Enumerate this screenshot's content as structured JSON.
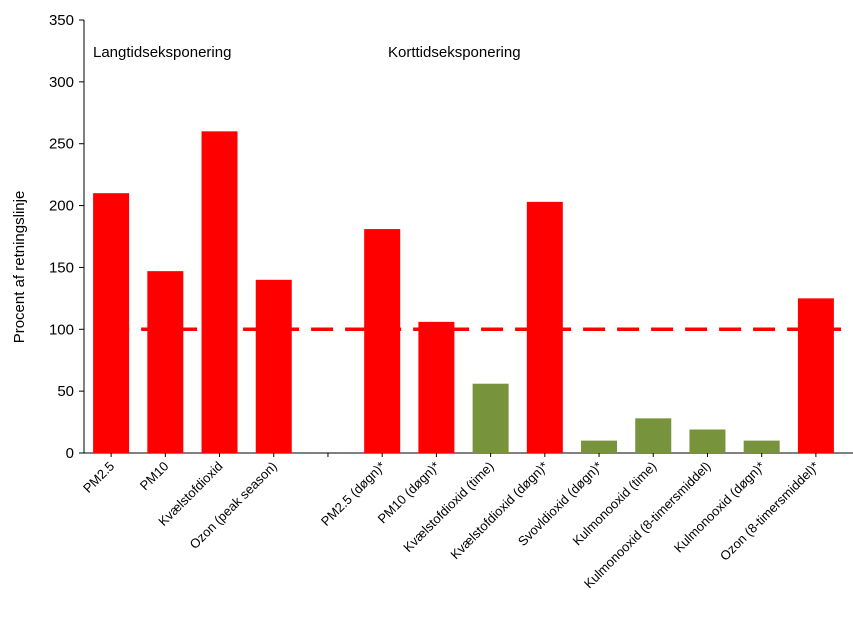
{
  "chart_data": {
    "type": "bar",
    "title": "",
    "xlabel": "",
    "ylabel": "Procent af retningslinje",
    "ylim": [
      0,
      350
    ],
    "yticks": [
      0,
      50,
      100,
      150,
      200,
      250,
      300,
      350
    ],
    "grid": false,
    "groups": [
      {
        "label": "Langtidseksponering"
      },
      {
        "label": "Korttidseksponering"
      }
    ],
    "reference_line": {
      "y": 100,
      "style": "dashed",
      "color": "#ff0000"
    },
    "colors": {
      "exceed": "#ff0000",
      "below": "#77933c"
    },
    "categories": [
      "PM2.5",
      "PM10",
      "Kvælstofdioxid",
      "Ozon (peak season)",
      "",
      "PM2.5 (døgn)*",
      "PM10 (døgn)*",
      "Kvælstofdioxid (time)",
      "Kvælstofdioxid (døgn)*",
      "Svovldioxid (døgn)*",
      "Kulmonooxid (time)",
      "Kulmonooxid (8-timersmiddel)",
      "Kulmonooxid (døgn)*",
      "Ozon (8-timersmiddel)*"
    ],
    "values": [
      210,
      147,
      260,
      140,
      null,
      181,
      106,
      56,
      203,
      10,
      28,
      19,
      10,
      125
    ]
  }
}
